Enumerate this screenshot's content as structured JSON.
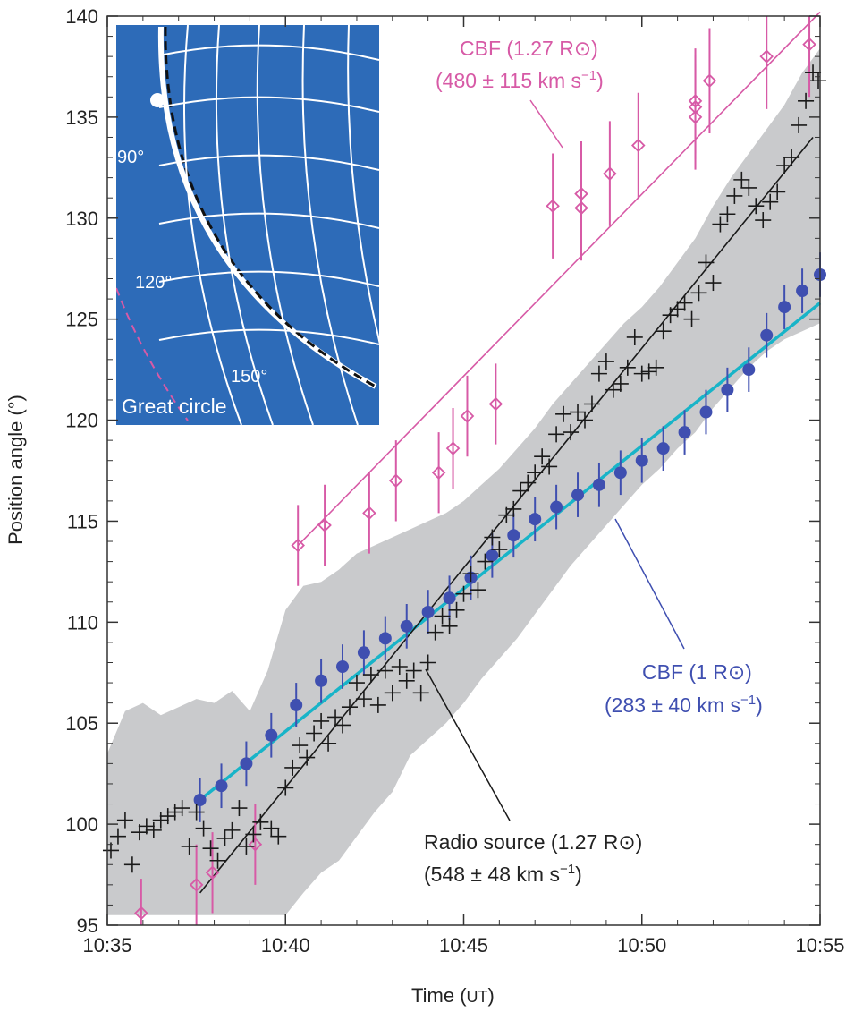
{
  "chart_data": {
    "type": "scatter",
    "xlabel": "Time",
    "xlabel_unit": "UT",
    "ylabel": "Position angle (°)",
    "x_range_minutes": [
      0,
      20
    ],
    "ylim": [
      95,
      140
    ],
    "x_ticks": [
      "10:35",
      "10:40",
      "10:45",
      "10:50",
      "10:55"
    ],
    "y_ticks": [
      "95",
      "100",
      "105",
      "110",
      "115",
      "120",
      "125",
      "130",
      "135",
      "140"
    ],
    "grid": false,
    "colors": {
      "pink": "#d75aa6",
      "blue": "#3f4fb0",
      "cyan": "#18b4c8",
      "black": "#1a1a1a",
      "band": "#c9cacc",
      "inset_bg": "#2d6bb8"
    },
    "annotations": {
      "pink_title": "CBF (1.27 R",
      "pink_speed": "(480 ± 115 km s",
      "blue_title": "CBF (1 R",
      "blue_speed": "(283 ± 40 km s",
      "black_title": "Radio source (1.27 R",
      "black_speed": "(548 ± 48 km s",
      "sun_symbol": "⊙",
      "close_paren": ")",
      "exponent": "−1"
    },
    "inset": {
      "labels": [
        "90°",
        "120°",
        "150°"
      ],
      "great_circle_label": "Great circle"
    },
    "series": [
      {
        "id": "cbf_127",
        "marker": "diamond",
        "points": [
          {
            "x": 0.95,
            "y": 95.6,
            "err": 1.7
          },
          {
            "x": 2.5,
            "y": 97.0,
            "err": 2.0
          },
          {
            "x": 2.95,
            "y": 97.6,
            "err": 2.0
          },
          {
            "x": 4.15,
            "y": 99.0,
            "err": 2.0
          },
          {
            "x": 5.35,
            "y": 113.8,
            "err": 2.0
          },
          {
            "x": 6.1,
            "y": 114.8,
            "err": 2.0
          },
          {
            "x": 7.35,
            "y": 115.4,
            "err": 2.0
          },
          {
            "x": 8.1,
            "y": 117.0,
            "err": 2.0
          },
          {
            "x": 9.3,
            "y": 117.4,
            "err": 2.0
          },
          {
            "x": 9.7,
            "y": 118.6,
            "err": 2.0
          },
          {
            "x": 10.1,
            "y": 120.2,
            "err": 2.0
          },
          {
            "x": 10.9,
            "y": 120.8,
            "err": 2.0
          },
          {
            "x": 12.5,
            "y": 130.6,
            "err": 2.6
          },
          {
            "x": 13.3,
            "y": 130.5,
            "err": 2.6
          },
          {
            "x": 13.3,
            "y": 131.2,
            "err": 2.6
          },
          {
            "x": 14.1,
            "y": 132.2,
            "err": 2.6
          },
          {
            "x": 14.9,
            "y": 133.6,
            "err": 2.6
          },
          {
            "x": 16.5,
            "y": 135.0,
            "err": 2.6
          },
          {
            "x": 16.5,
            "y": 135.5,
            "err": 2.6
          },
          {
            "x": 16.5,
            "y": 135.8,
            "err": 2.6
          },
          {
            "x": 16.9,
            "y": 136.8,
            "err": 2.6
          },
          {
            "x": 18.5,
            "y": 138.0,
            "err": 2.6
          },
          {
            "x": 19.7,
            "y": 138.6,
            "err": 2.6
          }
        ],
        "fit": {
          "x": [
            5.35,
            20
          ],
          "y": [
            113.8,
            140.2
          ]
        }
      },
      {
        "id": "cbf_1",
        "marker": "filled-circle",
        "points": [
          {
            "x": 2.6,
            "y": 101.2
          },
          {
            "x": 3.2,
            "y": 101.9
          },
          {
            "x": 3.9,
            "y": 103.0
          },
          {
            "x": 4.6,
            "y": 104.4
          },
          {
            "x": 5.3,
            "y": 105.9
          },
          {
            "x": 6.0,
            "y": 107.1
          },
          {
            "x": 6.6,
            "y": 107.8
          },
          {
            "x": 7.2,
            "y": 108.5
          },
          {
            "x": 7.8,
            "y": 109.2
          },
          {
            "x": 8.4,
            "y": 109.8
          },
          {
            "x": 9.0,
            "y": 110.5
          },
          {
            "x": 9.6,
            "y": 111.2
          },
          {
            "x": 10.2,
            "y": 112.2
          },
          {
            "x": 10.8,
            "y": 113.3
          },
          {
            "x": 11.4,
            "y": 114.3
          },
          {
            "x": 12.0,
            "y": 115.1
          },
          {
            "x": 12.6,
            "y": 115.7
          },
          {
            "x": 13.2,
            "y": 116.3
          },
          {
            "x": 13.8,
            "y": 116.8
          },
          {
            "x": 14.4,
            "y": 117.4
          },
          {
            "x": 15.0,
            "y": 118.0
          },
          {
            "x": 15.6,
            "y": 118.6
          },
          {
            "x": 16.2,
            "y": 119.4
          },
          {
            "x": 16.8,
            "y": 120.4
          },
          {
            "x": 17.4,
            "y": 121.5
          },
          {
            "x": 18.0,
            "y": 122.5
          },
          {
            "x": 18.5,
            "y": 124.2
          },
          {
            "x": 19.0,
            "y": 125.6
          },
          {
            "x": 19.5,
            "y": 126.4
          },
          {
            "x": 20.0,
            "y": 127.2
          }
        ],
        "fit": {
          "x": [
            2.6,
            20
          ],
          "y": [
            101.2,
            125.8
          ]
        }
      },
      {
        "id": "radio",
        "marker": "cross",
        "points": [
          {
            "x": 0.1,
            "y": 98.7
          },
          {
            "x": 0.3,
            "y": 99.4
          },
          {
            "x": 0.5,
            "y": 100.2
          },
          {
            "x": 0.7,
            "y": 98.0
          },
          {
            "x": 0.9,
            "y": 99.6
          },
          {
            "x": 1.1,
            "y": 99.9
          },
          {
            "x": 1.3,
            "y": 99.7
          },
          {
            "x": 1.5,
            "y": 100.2
          },
          {
            "x": 1.7,
            "y": 100.4
          },
          {
            "x": 1.9,
            "y": 100.6
          },
          {
            "x": 2.1,
            "y": 100.8
          },
          {
            "x": 2.3,
            "y": 98.9
          },
          {
            "x": 2.5,
            "y": 100.6
          },
          {
            "x": 2.7,
            "y": 99.8
          },
          {
            "x": 2.9,
            "y": 98.8
          },
          {
            "x": 3.1,
            "y": 98.2
          },
          {
            "x": 3.3,
            "y": 99.3
          },
          {
            "x": 3.5,
            "y": 99.7
          },
          {
            "x": 3.7,
            "y": 100.8
          },
          {
            "x": 3.9,
            "y": 98.9
          },
          {
            "x": 4.1,
            "y": 99.5
          },
          {
            "x": 4.3,
            "y": 100.1
          },
          {
            "x": 4.6,
            "y": 99.8
          },
          {
            "x": 4.8,
            "y": 99.4
          },
          {
            "x": 5.0,
            "y": 101.8
          },
          {
            "x": 5.2,
            "y": 102.8
          },
          {
            "x": 5.4,
            "y": 103.9
          },
          {
            "x": 5.6,
            "y": 103.3
          },
          {
            "x": 5.8,
            "y": 104.5
          },
          {
            "x": 6.0,
            "y": 105.1
          },
          {
            "x": 6.2,
            "y": 104.0
          },
          {
            "x": 6.4,
            "y": 105.3
          },
          {
            "x": 6.6,
            "y": 104.9
          },
          {
            "x": 6.8,
            "y": 105.8
          },
          {
            "x": 7.0,
            "y": 107.0
          },
          {
            "x": 7.2,
            "y": 106.2
          },
          {
            "x": 7.4,
            "y": 107.4
          },
          {
            "x": 7.6,
            "y": 105.9
          },
          {
            "x": 7.8,
            "y": 107.6
          },
          {
            "x": 8.0,
            "y": 106.5
          },
          {
            "x": 8.2,
            "y": 107.8
          },
          {
            "x": 8.4,
            "y": 107.1
          },
          {
            "x": 8.6,
            "y": 107.6
          },
          {
            "x": 8.8,
            "y": 106.5
          },
          {
            "x": 9.0,
            "y": 108.0
          },
          {
            "x": 9.2,
            "y": 109.5
          },
          {
            "x": 9.4,
            "y": 110.3
          },
          {
            "x": 9.6,
            "y": 109.8
          },
          {
            "x": 9.8,
            "y": 110.6
          },
          {
            "x": 10.0,
            "y": 111.4
          },
          {
            "x": 10.2,
            "y": 112.4
          },
          {
            "x": 10.4,
            "y": 111.6
          },
          {
            "x": 10.6,
            "y": 113.0
          },
          {
            "x": 10.8,
            "y": 114.2
          },
          {
            "x": 11.0,
            "y": 113.6
          },
          {
            "x": 11.2,
            "y": 115.3
          },
          {
            "x": 11.4,
            "y": 115.6
          },
          {
            "x": 11.6,
            "y": 116.5
          },
          {
            "x": 11.8,
            "y": 116.9
          },
          {
            "x": 12.0,
            "y": 117.4
          },
          {
            "x": 12.2,
            "y": 118.2
          },
          {
            "x": 12.4,
            "y": 117.7
          },
          {
            "x": 12.6,
            "y": 119.3
          },
          {
            "x": 12.8,
            "y": 120.3
          },
          {
            "x": 13.0,
            "y": 119.4
          },
          {
            "x": 13.2,
            "y": 120.4
          },
          {
            "x": 13.4,
            "y": 120.0
          },
          {
            "x": 13.6,
            "y": 120.8
          },
          {
            "x": 13.8,
            "y": 122.3
          },
          {
            "x": 14.0,
            "y": 122.9
          },
          {
            "x": 14.2,
            "y": 121.5
          },
          {
            "x": 14.4,
            "y": 121.8
          },
          {
            "x": 14.6,
            "y": 122.6
          },
          {
            "x": 14.8,
            "y": 124.1
          },
          {
            "x": 15.0,
            "y": 122.3
          },
          {
            "x": 15.2,
            "y": 122.4
          },
          {
            "x": 15.4,
            "y": 122.6
          },
          {
            "x": 15.6,
            "y": 124.4
          },
          {
            "x": 15.8,
            "y": 125.2
          },
          {
            "x": 16.0,
            "y": 125.5
          },
          {
            "x": 16.2,
            "y": 125.8
          },
          {
            "x": 16.4,
            "y": 125.0
          },
          {
            "x": 16.6,
            "y": 126.3
          },
          {
            "x": 16.8,
            "y": 127.8
          },
          {
            "x": 17.0,
            "y": 126.8
          },
          {
            "x": 17.2,
            "y": 129.7
          },
          {
            "x": 17.4,
            "y": 130.2
          },
          {
            "x": 17.6,
            "y": 131.1
          },
          {
            "x": 17.8,
            "y": 131.9
          },
          {
            "x": 18.0,
            "y": 131.5
          },
          {
            "x": 18.2,
            "y": 130.6
          },
          {
            "x": 18.4,
            "y": 129.9
          },
          {
            "x": 18.6,
            "y": 130.8
          },
          {
            "x": 18.8,
            "y": 131.3
          },
          {
            "x": 19.0,
            "y": 132.6
          },
          {
            "x": 19.2,
            "y": 133.0
          },
          {
            "x": 19.4,
            "y": 134.6
          },
          {
            "x": 19.6,
            "y": 135.8
          },
          {
            "x": 19.8,
            "y": 137.2
          },
          {
            "x": 19.95,
            "y": 136.8
          }
        ],
        "fit": {
          "x": [
            2.6,
            19.8
          ],
          "y": [
            96.6,
            134.0
          ]
        }
      }
    ],
    "band": {
      "x": [
        0,
        0.5,
        1.0,
        1.5,
        2.0,
        2.5,
        3.0,
        3.5,
        4.0,
        4.5,
        5.0,
        5.5,
        6.0,
        6.5,
        7.0,
        7.5,
        8.0,
        8.5,
        9.0,
        9.5,
        10.0,
        10.5,
        11.0,
        11.5,
        12.0,
        12.5,
        13.0,
        13.5,
        14.0,
        14.5,
        15.0,
        15.5,
        16.0,
        16.5,
        17.0,
        17.5,
        18.0,
        18.5,
        19.0,
        19.5,
        20.0
      ],
      "upper": [
        103.5,
        105.6,
        106.0,
        105.4,
        105.8,
        106.2,
        106.0,
        106.6,
        105.6,
        107.6,
        110.6,
        111.8,
        112.0,
        112.6,
        113.4,
        113.8,
        114.2,
        114.6,
        115.0,
        115.4,
        116.0,
        116.8,
        117.6,
        118.6,
        119.6,
        120.8,
        121.8,
        122.8,
        123.8,
        124.8,
        125.6,
        126.6,
        127.8,
        129.0,
        130.6,
        132.0,
        133.2,
        134.4,
        135.6,
        137.2,
        138.4
      ],
      "lower": [
        95.5,
        95.5,
        95.5,
        95.5,
        95.5,
        95.5,
        95.5,
        95.5,
        95.5,
        95.5,
        95.5,
        96.6,
        97.6,
        98.2,
        99.4,
        100.6,
        101.6,
        103.4,
        104.2,
        105.0,
        106.0,
        107.2,
        108.2,
        109.2,
        110.4,
        111.6,
        112.8,
        113.8,
        114.8,
        115.8,
        116.8,
        117.6,
        118.6,
        119.4,
        120.6,
        121.6,
        122.6,
        123.4,
        124.0,
        124.4,
        124.8
      ]
    }
  }
}
